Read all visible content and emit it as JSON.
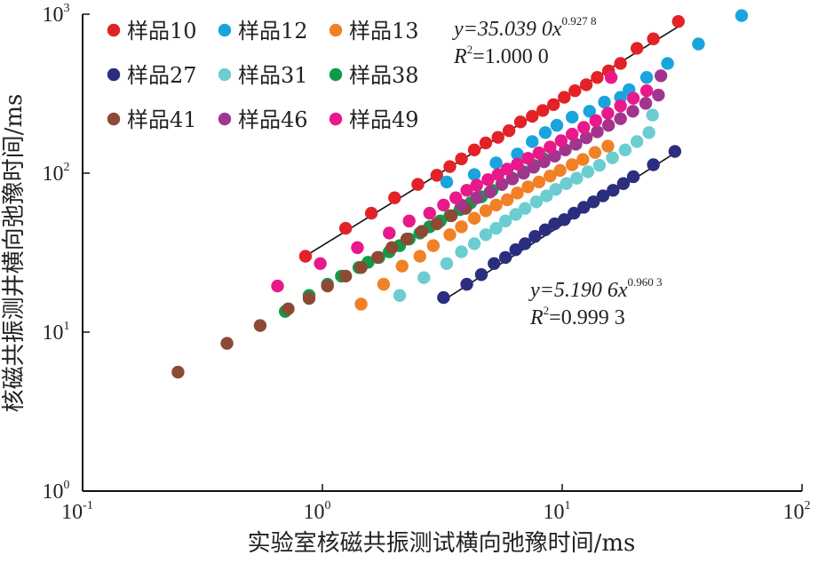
{
  "chart_data": {
    "type": "scatter",
    "xscale": "log",
    "yscale": "log",
    "xlim": [
      0.1,
      100
    ],
    "ylim": [
      1,
      1000
    ],
    "xlabel": "实验室核磁共振测试横向弛豫时间/ms",
    "ylabel": "核磁共振测井横向弛豫时间/ms",
    "xticks": [
      {
        "value": 0.1,
        "base": "10",
        "exp": "-1"
      },
      {
        "value": 1,
        "base": "10",
        "exp": "0"
      },
      {
        "value": 10,
        "base": "10",
        "exp": "1"
      },
      {
        "value": 100,
        "base": "10",
        "exp": "2"
      }
    ],
    "yticks": [
      {
        "value": 1,
        "base": "10",
        "exp": "0"
      },
      {
        "value": 10,
        "base": "10",
        "exp": "1"
      },
      {
        "value": 100,
        "base": "10",
        "exp": "2"
      },
      {
        "value": 1000,
        "base": "10",
        "exp": "3"
      }
    ],
    "grid": false,
    "legend_position": "top-left",
    "series": [
      {
        "name": "样品10",
        "color": "#e32227",
        "points": [
          [
            0.85,
            30
          ],
          [
            1.25,
            45
          ],
          [
            1.6,
            56
          ],
          [
            2.0,
            70
          ],
          [
            2.5,
            85
          ],
          [
            3.0,
            97
          ],
          [
            3.4,
            110
          ],
          [
            3.8,
            123
          ],
          [
            4.3,
            140
          ],
          [
            4.8,
            155
          ],
          [
            5.4,
            168
          ],
          [
            6.0,
            185
          ],
          [
            6.7,
            210
          ],
          [
            7.5,
            228
          ],
          [
            8.3,
            248
          ],
          [
            9.2,
            270
          ],
          [
            10.2,
            300
          ],
          [
            11.3,
            330
          ],
          [
            12.6,
            360
          ],
          [
            14.0,
            400
          ],
          [
            15.6,
            440
          ],
          [
            17.5,
            490
          ],
          [
            20.5,
            610
          ],
          [
            24.0,
            700
          ],
          [
            30.5,
            900
          ]
        ]
      },
      {
        "name": "样品12",
        "color": "#1aa4dd",
        "points": [
          [
            3.3,
            88
          ],
          [
            4.3,
            98
          ],
          [
            5.3,
            116
          ],
          [
            6.5,
            132
          ],
          [
            7.5,
            158
          ],
          [
            8.5,
            180
          ],
          [
            9.5,
            200
          ],
          [
            11.0,
            225
          ],
          [
            13.0,
            245
          ],
          [
            15.0,
            280
          ],
          [
            17.5,
            300
          ],
          [
            19.0,
            335
          ],
          [
            22.5,
            400
          ],
          [
            27.5,
            490
          ],
          [
            37.0,
            650
          ],
          [
            56.0,
            980
          ]
        ]
      },
      {
        "name": "样品13",
        "color": "#f08126",
        "points": [
          [
            1.45,
            15
          ],
          [
            1.8,
            20
          ],
          [
            2.15,
            26
          ],
          [
            2.55,
            30
          ],
          [
            2.9,
            35
          ],
          [
            3.4,
            41
          ],
          [
            3.8,
            46
          ],
          [
            4.3,
            52
          ],
          [
            4.8,
            58
          ],
          [
            5.3,
            63
          ],
          [
            5.9,
            68
          ],
          [
            6.5,
            75
          ],
          [
            7.2,
            82
          ],
          [
            8.0,
            88
          ],
          [
            8.9,
            96
          ],
          [
            9.8,
            104
          ],
          [
            11.0,
            113
          ],
          [
            12.2,
            122
          ],
          [
            13.7,
            135
          ],
          [
            15.5,
            148
          ]
        ]
      },
      {
        "name": "样品27",
        "color": "#2b2e7e",
        "points": [
          [
            3.2,
            16.5
          ],
          [
            4.0,
            20
          ],
          [
            4.6,
            23
          ],
          [
            5.2,
            27
          ],
          [
            5.8,
            29.5
          ],
          [
            6.4,
            33
          ],
          [
            7.0,
            36
          ],
          [
            7.7,
            40
          ],
          [
            8.5,
            44
          ],
          [
            9.3,
            48
          ],
          [
            10.2,
            51
          ],
          [
            11.2,
            56
          ],
          [
            12.3,
            61
          ],
          [
            13.5,
            66
          ],
          [
            14.8,
            72
          ],
          [
            16.3,
            78
          ],
          [
            18.0,
            86
          ],
          [
            19.8,
            95
          ],
          [
            24.0,
            113
          ],
          [
            29.5,
            137
          ]
        ]
      },
      {
        "name": "样品31",
        "color": "#6ccdd1",
        "points": [
          [
            2.1,
            17
          ],
          [
            2.65,
            22
          ],
          [
            3.3,
            27
          ],
          [
            3.8,
            32
          ],
          [
            4.3,
            36
          ],
          [
            4.8,
            41
          ],
          [
            5.3,
            45
          ],
          [
            5.8,
            50
          ],
          [
            6.4,
            55
          ],
          [
            7.0,
            60
          ],
          [
            7.8,
            66
          ],
          [
            8.6,
            72
          ],
          [
            9.4,
            79
          ],
          [
            10.4,
            86
          ],
          [
            11.5,
            93
          ],
          [
            12.8,
            102
          ],
          [
            14.3,
            112
          ],
          [
            16.2,
            125
          ],
          [
            18.3,
            140
          ],
          [
            20.5,
            158
          ],
          [
            23.0,
            180
          ],
          [
            23.8,
            232
          ]
        ]
      },
      {
        "name": "样品38",
        "color": "#0f9a4a",
        "points": [
          [
            0.7,
            13.5
          ],
          [
            0.88,
            17
          ],
          [
            1.05,
            20
          ],
          [
            1.2,
            22.5
          ],
          [
            1.42,
            25.5
          ],
          [
            1.55,
            27.5
          ],
          [
            1.72,
            29.5
          ],
          [
            1.9,
            32
          ],
          [
            2.1,
            35
          ],
          [
            2.3,
            38.5
          ],
          [
            2.55,
            42
          ],
          [
            2.8,
            46
          ],
          [
            3.1,
            50
          ],
          [
            3.4,
            54
          ],
          [
            3.75,
            59
          ],
          [
            4.15,
            65
          ],
          [
            4.6,
            71
          ],
          [
            5.1,
            78
          ],
          [
            5.6,
            85
          ],
          [
            6.2,
            93
          ],
          [
            6.9,
            102
          ],
          [
            7.6,
            112
          ],
          [
            8.4,
            123
          ]
        ]
      },
      {
        "name": "样品41",
        "color": "#8c4a34",
        "points": [
          [
            0.25,
            5.6
          ],
          [
            0.4,
            8.5
          ],
          [
            0.55,
            11
          ],
          [
            0.72,
            14
          ],
          [
            0.88,
            16.3
          ],
          [
            1.05,
            19.5
          ],
          [
            1.25,
            22.5
          ],
          [
            1.45,
            25.5
          ],
          [
            1.7,
            29.5
          ],
          [
            1.95,
            34
          ],
          [
            2.25,
            38.5
          ],
          [
            2.6,
            43
          ],
          [
            3.0,
            48
          ],
          [
            3.45,
            54
          ],
          [
            3.95,
            60
          ]
        ]
      },
      {
        "name": "样品46",
        "color": "#a1358d",
        "points": [
          [
            3.8,
            63
          ],
          [
            4.4,
            70
          ],
          [
            5.0,
            76
          ],
          [
            5.6,
            85
          ],
          [
            6.2,
            92
          ],
          [
            6.9,
            100
          ],
          [
            7.6,
            109
          ],
          [
            8.4,
            118
          ],
          [
            9.3,
            128
          ],
          [
            10.3,
            140
          ],
          [
            11.4,
            152
          ],
          [
            12.6,
            167
          ],
          [
            14.0,
            182
          ],
          [
            15.6,
            200
          ],
          [
            17.5,
            220
          ],
          [
            19.7,
            245
          ],
          [
            22.3,
            275
          ],
          [
            25.2,
            310
          ],
          [
            25.8,
            410
          ]
        ]
      },
      {
        "name": "样品49",
        "color": "#e8198b",
        "points": [
          [
            0.65,
            19.5
          ],
          [
            0.98,
            27
          ],
          [
            1.4,
            34
          ],
          [
            1.9,
            42
          ],
          [
            2.3,
            50
          ],
          [
            2.8,
            56
          ],
          [
            3.2,
            63
          ],
          [
            3.6,
            70
          ],
          [
            4.0,
            78
          ],
          [
            4.4,
            84
          ],
          [
            4.9,
            91
          ],
          [
            5.4,
            98
          ],
          [
            5.9,
            106
          ],
          [
            6.5,
            114
          ],
          [
            7.2,
            124
          ],
          [
            8.0,
            134
          ],
          [
            8.9,
            146
          ],
          [
            9.9,
            160
          ],
          [
            11.0,
            176
          ],
          [
            12.3,
            194
          ],
          [
            13.8,
            214
          ],
          [
            15.5,
            238
          ],
          [
            17.5,
            265
          ],
          [
            19.8,
            296
          ],
          [
            22.5,
            330
          ],
          [
            16.0,
            400
          ]
        ]
      }
    ],
    "fits": [
      {
        "label_lead": "y=35.039 0x",
        "exponent_text": "0.927 8",
        "r2_lead": "R",
        "r2_sup": "2",
        "r2_value": "=1.000 0",
        "a": 35.039,
        "b": 0.9278,
        "x_range": [
          0.82,
          31
        ]
      },
      {
        "label_lead": "y=5.190 6x",
        "exponent_text": "0.960 3",
        "r2_lead": "R",
        "r2_sup": "2",
        "r2_value": "=0.999 3",
        "a": 5.1906,
        "b": 0.9603,
        "x_range": [
          3.2,
          30.5
        ]
      }
    ]
  }
}
